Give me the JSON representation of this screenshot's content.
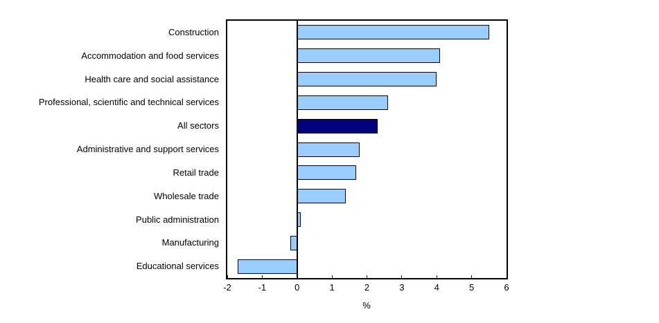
{
  "chart_data": {
    "type": "bar",
    "orientation": "horizontal",
    "categories": [
      "Construction",
      "Accommodation and food services",
      "Health care and social assistance",
      "Professional, scientific and technical services",
      "All sectors",
      "Administrative and support services",
      "Retail trade",
      "Wholesale trade",
      "Public administration",
      "Manufacturing",
      "Educational services"
    ],
    "values": [
      5.5,
      4.1,
      4.0,
      2.6,
      2.3,
      1.8,
      1.7,
      1.4,
      0.1,
      -0.2,
      -1.7
    ],
    "highlight_category": "All sectors",
    "xlabel": "%",
    "xlim": [
      -2,
      6
    ],
    "xticks": [
      -2,
      -1,
      0,
      1,
      2,
      3,
      4,
      5,
      6
    ],
    "grid": false,
    "legend": "none",
    "colors": {
      "bar_fill": "#99CCFF",
      "bar_border": "#000000",
      "highlight_fill": "#000080",
      "axis": "#000000",
      "background": "#FFFFFF"
    }
  }
}
